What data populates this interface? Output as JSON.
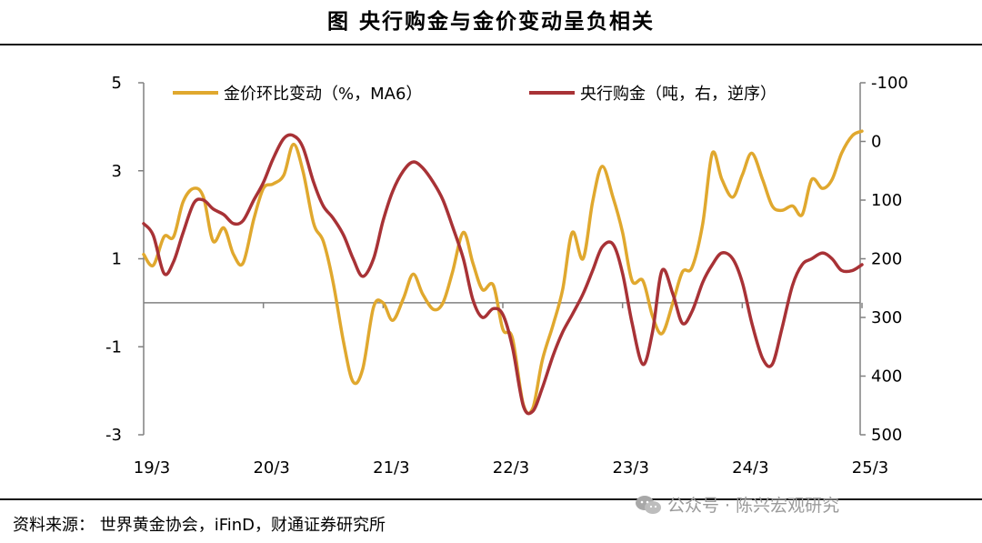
{
  "title": "图  央行购金与金价变动呈负相关",
  "source_text": "资料来源：  世界黄金协会，iFinD，财通证券研究所",
  "watermark": {
    "text": "公众号 · 陈兴宏观研究",
    "icon": "wechat-icon"
  },
  "chart_data": {
    "type": "line",
    "title": "图  央行购金与金价变动呈负相关",
    "x_tick_labels": [
      "19/3",
      "20/3",
      "21/3",
      "22/3",
      "23/3",
      "24/3",
      "25/3"
    ],
    "y_left": {
      "ylim": [
        -3,
        5
      ],
      "ticks": [
        5,
        3,
        1,
        -1,
        -3
      ],
      "tick_labels": [
        "5",
        "3",
        "1",
        "-1",
        "-3"
      ]
    },
    "y_right": {
      "ylim": [
        -100,
        500
      ],
      "reversed": true,
      "ticks": [
        -100,
        0,
        100,
        200,
        300,
        400,
        500
      ],
      "tick_labels": [
        "-100",
        "0",
        "100",
        "200",
        "300",
        "400",
        "500"
      ]
    },
    "grid": false,
    "legend_position": "top",
    "series": [
      {
        "name": "金价环比变动（%，MA6）",
        "axis": "left",
        "color": "#E0A82E",
        "x": [
          0,
          0.08,
          0.17,
          0.25,
          0.33,
          0.42,
          0.5,
          0.58,
          0.67,
          0.75,
          0.83,
          0.92,
          1,
          1.08,
          1.17,
          1.25,
          1.33,
          1.42,
          1.5,
          1.58,
          1.67,
          1.75,
          1.83,
          1.92,
          2,
          2.08,
          2.17,
          2.25,
          2.33,
          2.42,
          2.5,
          2.58,
          2.67,
          2.75,
          2.83,
          2.92,
          3,
          3.08,
          3.17,
          3.25,
          3.33,
          3.42,
          3.5,
          3.58,
          3.67,
          3.75,
          3.83,
          3.92,
          4,
          4.08,
          4.17,
          4.25,
          4.33,
          4.42,
          4.5,
          4.58,
          4.67,
          4.75,
          4.83,
          4.92,
          5,
          5.08,
          5.17,
          5.25,
          5.33,
          5.42,
          5.5,
          5.58,
          5.67,
          5.75,
          5.83,
          5.92,
          6
        ],
        "values": [
          1.1,
          0.85,
          1.5,
          1.5,
          2.3,
          2.6,
          2.4,
          1.4,
          1.7,
          1.1,
          0.9,
          1.9,
          2.6,
          2.7,
          2.9,
          3.6,
          3.0,
          1.8,
          1.4,
          0.5,
          -0.9,
          -1.8,
          -1.5,
          -0.1,
          0.0,
          -0.4,
          0.1,
          0.65,
          0.2,
          -0.15,
          0.0,
          0.7,
          1.6,
          0.9,
          0.3,
          0.4,
          -0.6,
          -0.8,
          -2.3,
          -2.4,
          -1.3,
          -0.5,
          0.3,
          1.6,
          1.0,
          2.3,
          3.1,
          2.4,
          1.6,
          0.5,
          0.5,
          -0.3,
          -0.7,
          0.0,
          0.7,
          0.8,
          1.8,
          3.4,
          2.8,
          2.4,
          2.9,
          3.4,
          2.8,
          2.2,
          2.1,
          2.2,
          2.0,
          2.8,
          2.6,
          2.8,
          3.4,
          3.8,
          3.9
        ]
      },
      {
        "name": "央行购金（吨，右，逆序）",
        "axis": "right",
        "color": "#A83236",
        "x": [
          0,
          0.08,
          0.17,
          0.25,
          0.33,
          0.42,
          0.5,
          0.58,
          0.67,
          0.75,
          0.83,
          0.92,
          1,
          1.08,
          1.17,
          1.25,
          1.33,
          1.42,
          1.5,
          1.58,
          1.67,
          1.75,
          1.83,
          1.92,
          2,
          2.08,
          2.17,
          2.25,
          2.33,
          2.42,
          2.5,
          2.58,
          2.67,
          2.75,
          2.83,
          2.92,
          3,
          3.08,
          3.17,
          3.25,
          3.33,
          3.42,
          3.5,
          3.58,
          3.67,
          3.75,
          3.83,
          3.92,
          4,
          4.08,
          4.17,
          4.25,
          4.33,
          4.42,
          4.5,
          4.58,
          4.67,
          4.75,
          4.83,
          4.92,
          5,
          5.08,
          5.17,
          5.25,
          5.33,
          5.42,
          5.5,
          5.58,
          5.67,
          5.75,
          5.83,
          5.92,
          6
        ],
        "values": [
          140,
          160,
          225,
          205,
          155,
          105,
          100,
          115,
          125,
          140,
          135,
          100,
          70,
          30,
          -5,
          -10,
          10,
          70,
          110,
          130,
          160,
          200,
          230,
          200,
          135,
          85,
          50,
          35,
          45,
          70,
          100,
          145,
          200,
          270,
          300,
          285,
          295,
          350,
          450,
          460,
          420,
          365,
          325,
          295,
          260,
          220,
          180,
          175,
          225,
          310,
          380,
          325,
          220,
          260,
          310,
          290,
          240,
          210,
          190,
          200,
          240,
          310,
          370,
          380,
          320,
          245,
          210,
          200,
          190,
          200,
          220,
          220,
          210
        ]
      }
    ]
  }
}
